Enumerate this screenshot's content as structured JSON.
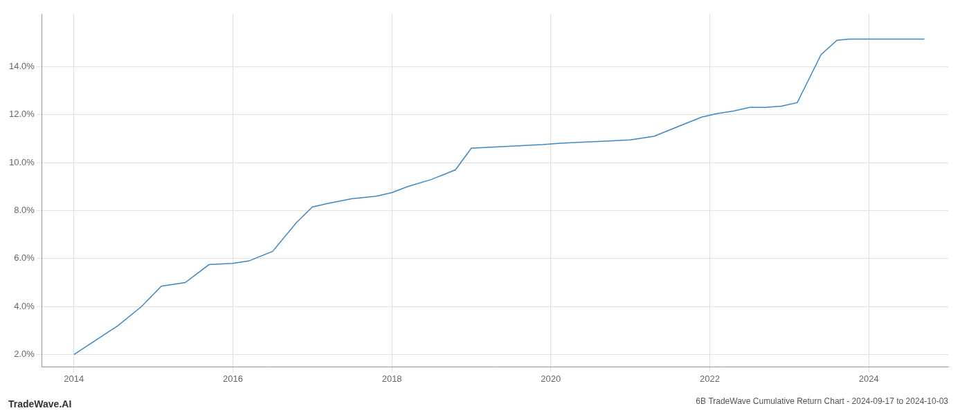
{
  "chart_data": {
    "type": "line",
    "title": "6B TradeWave Cumulative Return Chart - 2024-09-17 to 2024-10-03",
    "annotations": [
      "TradeWave.AI"
    ],
    "x": [
      2014.0,
      2014.55,
      2014.85,
      2015.1,
      2015.4,
      2015.7,
      2016.0,
      2016.2,
      2016.5,
      2016.8,
      2017.0,
      2017.2,
      2017.5,
      2017.8,
      2018.0,
      2018.2,
      2018.5,
      2018.8,
      2019.0,
      2019.3,
      2019.6,
      2019.9,
      2020.1,
      2020.4,
      2020.7,
      2021.0,
      2021.3,
      2021.6,
      2021.9,
      2022.1,
      2022.3,
      2022.5,
      2022.7,
      2022.9,
      2023.1,
      2023.4,
      2023.6,
      2023.75,
      2024.0,
      2024.3,
      2024.7
    ],
    "values": [
      2.0,
      3.2,
      4.0,
      4.85,
      5.0,
      5.75,
      5.8,
      5.9,
      6.3,
      7.5,
      8.15,
      8.3,
      8.5,
      8.6,
      8.75,
      9.0,
      9.3,
      9.7,
      10.6,
      10.65,
      10.7,
      10.75,
      10.8,
      10.85,
      10.9,
      10.95,
      11.1,
      11.5,
      11.9,
      12.05,
      12.15,
      12.3,
      12.3,
      12.35,
      12.5,
      14.5,
      15.1,
      15.15,
      15.15,
      15.15,
      15.15
    ],
    "color": "#3a87c8",
    "xlim": [
      2013.6,
      2025.0
    ],
    "ylim": [
      1.5,
      16.2
    ],
    "xticks": [
      2014,
      2016,
      2018,
      2020,
      2022,
      2024
    ],
    "yticks": [
      {
        "value": 2.0,
        "label": "2.0%"
      },
      {
        "value": 4.0,
        "label": "4.0%"
      },
      {
        "value": 6.0,
        "label": "6.0%"
      },
      {
        "value": 8.0,
        "label": "8.0%"
      },
      {
        "value": 10.0,
        "label": "10.0%"
      },
      {
        "value": 12.0,
        "label": "12.0%"
      },
      {
        "value": 14.0,
        "label": "14.0%"
      }
    ],
    "grid": true
  }
}
